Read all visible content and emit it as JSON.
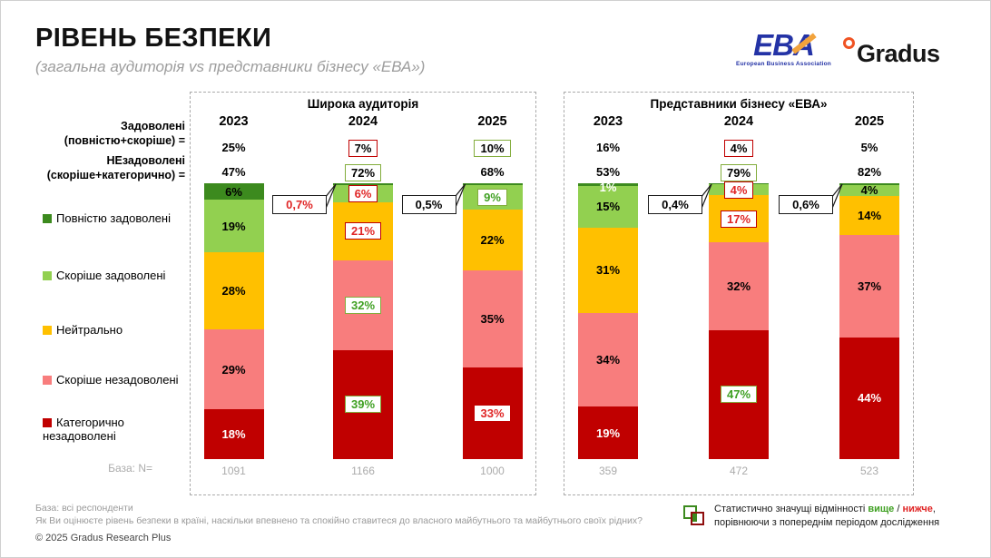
{
  "header": {
    "title": "РІВЕНЬ БЕЗПЕКИ",
    "subtitle": "(загальна аудиторія vs представники бізнесу «ЕВА»)",
    "eba_logo": {
      "text": "EBA",
      "subtext": "European Business Association"
    },
    "gradus_logo_text": "Gradus"
  },
  "legend": {
    "satisfied_label": "Задоволені\n(повністю+скоріше) =",
    "dissatisfied_label": "НЕзадоволені\n(скоріше+категорично) =",
    "base_label": "База: N=",
    "items": [
      {
        "label": "Повністю задоволені",
        "color": "#3c8a1e"
      },
      {
        "label": "Скоріше задоволені",
        "color": "#92d050"
      },
      {
        "label": "Нейтрально",
        "color": "#ffc000"
      },
      {
        "label": "Скоріше незадоволені",
        "color": "#f87d7d"
      },
      {
        "label": "Категорично незадоволені",
        "color": "#c00000"
      }
    ]
  },
  "chart_data": [
    {
      "type": "bar",
      "stacked": true,
      "title": "Широка аудиторія",
      "categories": [
        "2023",
        "2024",
        "2025"
      ],
      "series": [
        "Повністю задоволені",
        "Скоріше задоволені",
        "Нейтрально",
        "Скоріше незадоволені",
        "Категорично незадоволені"
      ],
      "series_colors": [
        "#3c8a1e",
        "#92d050",
        "#ffc000",
        "#f87d7d",
        "#c00000"
      ],
      "columns": [
        {
          "year": "2023",
          "satisfied": {
            "text": "25%",
            "style": "plain"
          },
          "dissatisfied": {
            "text": "47%",
            "style": "plain"
          },
          "base": "1091",
          "callout": null,
          "segments": [
            {
              "value": 6,
              "label": "6%",
              "label_style": "plain"
            },
            {
              "value": 19,
              "label": "19%",
              "label_style": "plain"
            },
            {
              "value": 28,
              "label": "28%",
              "label_style": "plain"
            },
            {
              "value": 29,
              "label": "29%",
              "label_style": "plain"
            },
            {
              "value": 18,
              "label": "18%",
              "label_style": "white"
            }
          ]
        },
        {
          "year": "2024",
          "satisfied": {
            "text": "7%",
            "style": "box-red-black"
          },
          "dissatisfied": {
            "text": "72%",
            "style": "box-green-black"
          },
          "base": "1166",
          "callout": {
            "text": "0,7%",
            "style": "red"
          },
          "segments": [
            {
              "value": 0.7,
              "label": null,
              "label_style": null
            },
            {
              "value": 6,
              "label": "6%",
              "label_style": "box-red"
            },
            {
              "value": 21,
              "label": "21%",
              "label_style": "box-red"
            },
            {
              "value": 32,
              "label": "32%",
              "label_style": "box-green"
            },
            {
              "value": 39,
              "label": "39%",
              "label_style": "box-green"
            }
          ]
        },
        {
          "year": "2025",
          "satisfied": {
            "text": "10%",
            "style": "box-green-black"
          },
          "dissatisfied": {
            "text": "68%",
            "style": "plain"
          },
          "base": "1000",
          "callout": {
            "text": "0,5%",
            "style": "black"
          },
          "segments": [
            {
              "value": 0.5,
              "label": null,
              "label_style": null
            },
            {
              "value": 9,
              "label": "9%",
              "label_style": "box-green"
            },
            {
              "value": 22,
              "label": "22%",
              "label_style": "plain"
            },
            {
              "value": 35,
              "label": "35%",
              "label_style": "plain"
            },
            {
              "value": 33,
              "label": "33%",
              "label_style": "box-white-red"
            }
          ]
        }
      ]
    },
    {
      "type": "bar",
      "stacked": true,
      "title": "Представники бізнесу «ЕВА»",
      "categories": [
        "2023",
        "2024",
        "2025"
      ],
      "series": [
        "Повністю задоволені",
        "Скоріше задоволені",
        "Нейтрально",
        "Скоріше незадоволені",
        "Категорично незадоволені"
      ],
      "series_colors": [
        "#3c8a1e",
        "#92d050",
        "#ffc000",
        "#f87d7d",
        "#c00000"
      ],
      "columns": [
        {
          "year": "2023",
          "satisfied": {
            "text": "16%",
            "style": "plain"
          },
          "dissatisfied": {
            "text": "53%",
            "style": "plain"
          },
          "base": "359",
          "callout": null,
          "segments": [
            {
              "value": 1,
              "label": "1%",
              "label_style": "white-top"
            },
            {
              "value": 15,
              "label": "15%",
              "label_style": "plain"
            },
            {
              "value": 31,
              "label": "31%",
              "label_style": "plain"
            },
            {
              "value": 34,
              "label": "34%",
              "label_style": "plain"
            },
            {
              "value": 19,
              "label": "19%",
              "label_style": "white"
            }
          ]
        },
        {
          "year": "2024",
          "satisfied": {
            "text": "4%",
            "style": "box-red-black"
          },
          "dissatisfied": {
            "text": "79%",
            "style": "box-green-black"
          },
          "base": "472",
          "callout": {
            "text": "0,4%",
            "style": "black"
          },
          "segments": [
            {
              "value": 0.4,
              "label": null,
              "label_style": null
            },
            {
              "value": 4,
              "label": "4%",
              "label_style": "box-red"
            },
            {
              "value": 17,
              "label": "17%",
              "label_style": "box-red"
            },
            {
              "value": 32,
              "label": "32%",
              "label_style": "plain"
            },
            {
              "value": 47,
              "label": "47%",
              "label_style": "box-green"
            }
          ]
        },
        {
          "year": "2025",
          "satisfied": {
            "text": "5%",
            "style": "plain"
          },
          "dissatisfied": {
            "text": "82%",
            "style": "plain"
          },
          "base": "523",
          "callout": {
            "text": "0,6%",
            "style": "black"
          },
          "segments": [
            {
              "value": 0.6,
              "label": null,
              "label_style": null
            },
            {
              "value": 4,
              "label": "4%",
              "label_style": "plain"
            },
            {
              "value": 14,
              "label": "14%",
              "label_style": "plain"
            },
            {
              "value": 37,
              "label": "37%",
              "label_style": "plain"
            },
            {
              "value": 44,
              "label": "44%",
              "label_style": "white"
            }
          ]
        }
      ]
    }
  ],
  "footer": {
    "base_line": "База: всі респонденти",
    "question_line": "Як Ви оцінюєте рівень безпеки в країні, наскільки впевнено та спокійно ставитеся до власного майбутнього та майбутнього своїх рідних?",
    "copyright": "© 2025 Gradus Research Plus",
    "note": {
      "prefix": "Статистично значущі відмінності ",
      "higher": "вище",
      "separator": " / ",
      "lower": "нижче",
      "suffix": ",",
      "line2": "порівнюючи з попереднім періодом дослідження"
    }
  }
}
